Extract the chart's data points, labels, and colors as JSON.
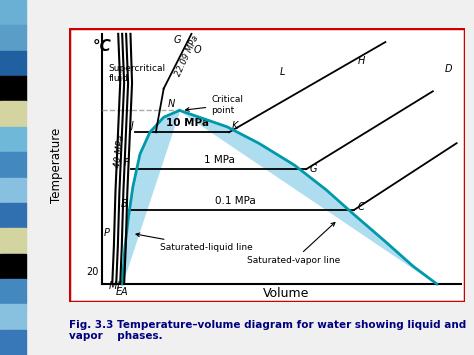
{
  "title_yaxis": "°C",
  "xlabel": "Volume",
  "ylabel": "Temperature",
  "fig_caption": "Fig. 3.3 Temperature–volume diagram for water showing liquid and\nvapor    phases.",
  "background_color": "#f0f0f0",
  "plot_bg": "#ffffff",
  "border_color": "#cc0000",
  "dome_fill_color": "#aeddf0",
  "sat_line_color": "#0099aa",
  "dashed_line_color": "#aaaaaa",
  "sidebar_colors": [
    "#6ab0d4",
    "#5a9ec8",
    "#2060a0",
    "#000000",
    "#d4d4a0",
    "#70b8d8",
    "#4488c0",
    "#88c0e0",
    "#3070b0",
    "#d4d4a0",
    "#000000",
    "#4488c0",
    "#88c0e0",
    "#3878b8"
  ],
  "caption_color": "#000080"
}
